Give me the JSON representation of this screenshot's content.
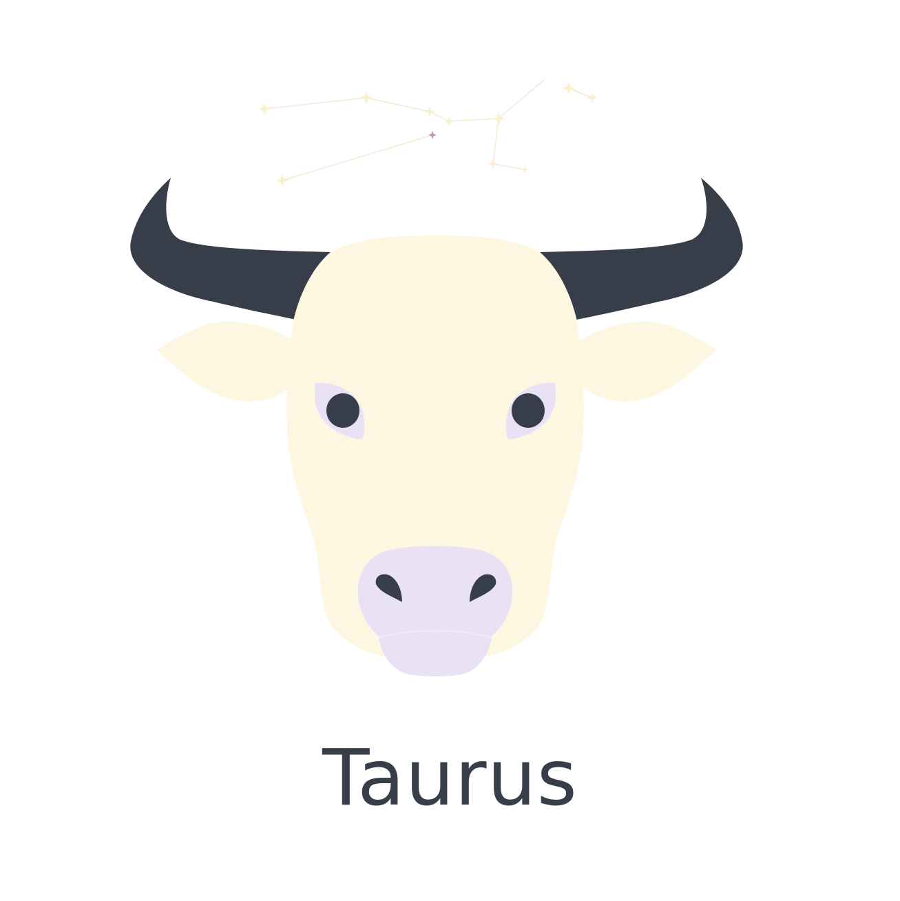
{
  "sign": {
    "name": "Taurus"
  },
  "palette": {
    "background": "#ffffff",
    "horn": "#383e49",
    "face": "#fdf6e0",
    "eye_patch": "#e9e1f5",
    "eye": "#383e49",
    "muzzle": "#e9e1f5",
    "nostril": "#383e49",
    "constellation_star": "#fbefcc",
    "constellation_line": "#f3ead4",
    "accent_star": "#c48fb6",
    "text": "#383e49"
  },
  "icons": [
    "bull-head-illustration",
    "taurus-constellation"
  ]
}
